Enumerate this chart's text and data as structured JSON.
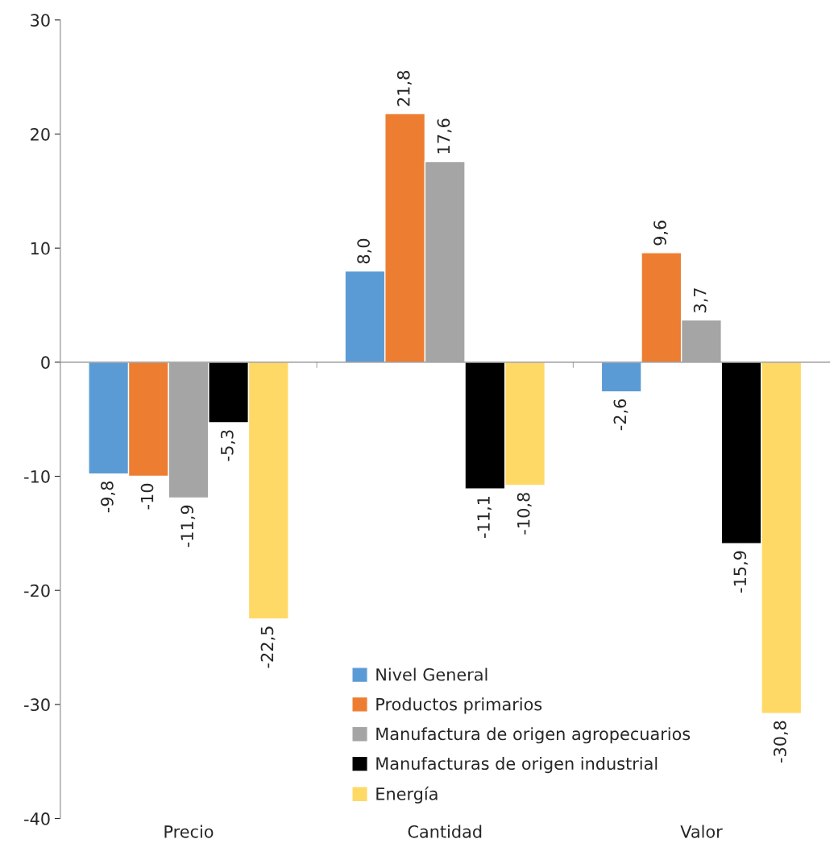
{
  "chart_data": {
    "type": "bar",
    "categories": [
      "Precio",
      "Cantidad",
      "Valor"
    ],
    "series": [
      {
        "name": "Nivel General",
        "color": "#5b9bd5",
        "values": [
          -9.8,
          8.0,
          -2.6
        ],
        "value_labels": [
          "-9,8",
          "8,0",
          "-2,6"
        ]
      },
      {
        "name": "Productos primarios",
        "color": "#ed7d31",
        "values": [
          -10,
          21.8,
          9.6
        ],
        "value_labels": [
          "-10",
          "21,8",
          "9,6"
        ]
      },
      {
        "name": "Manufactura de origen agropecuarios",
        "color": "#a5a5a5",
        "values": [
          -11.9,
          17.6,
          3.7
        ],
        "value_labels": [
          "-11,9",
          "17,6",
          "3,7"
        ]
      },
      {
        "name": "Manufacturas de origen industrial",
        "color": "#000000",
        "values": [
          -5.3,
          -11.1,
          -15.9
        ],
        "value_labels": [
          "-5,3",
          "-11,1",
          "-15,9"
        ]
      },
      {
        "name": "Energía",
        "color": "#ffd966",
        "values": [
          -22.5,
          -10.8,
          -30.8
        ],
        "value_labels": [
          "-22,5",
          "-10,8",
          "-30,8"
        ]
      }
    ],
    "ylim": [
      -40,
      30
    ],
    "yticks": [
      -40,
      -30,
      -20,
      -10,
      0,
      10,
      20,
      30
    ],
    "legend": "bottom"
  }
}
